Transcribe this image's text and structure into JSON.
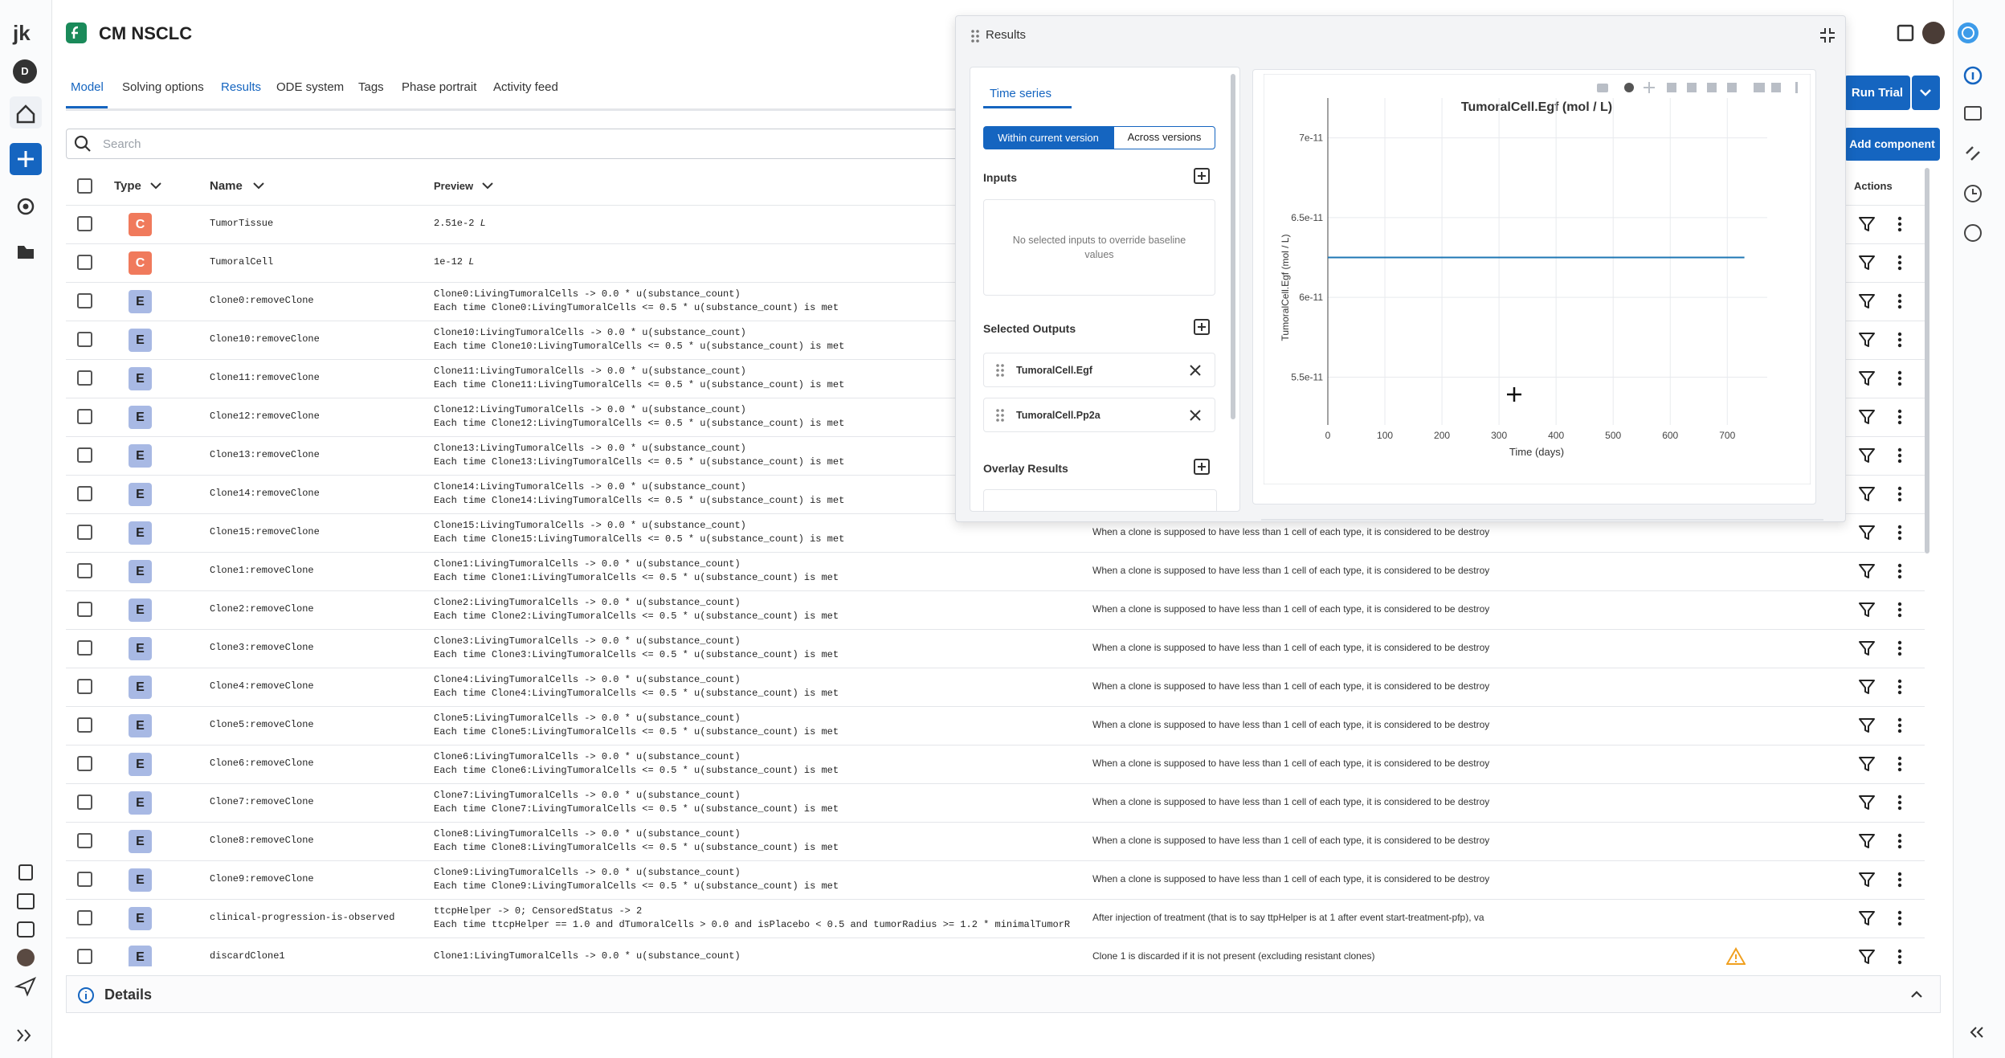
{
  "app": {
    "logo": "jk",
    "avatar_letter": "D"
  },
  "header": {
    "title": "CM NSCLC"
  },
  "tabs": [
    "Model",
    "Solving options",
    "Results",
    "ODE system",
    "Tags",
    "Phase portrait",
    "Activity feed"
  ],
  "search_placeholder": "Search",
  "buttons": {
    "run": "Run Trial",
    "add": "Add component"
  },
  "table": {
    "columns": [
      "Type",
      "Name",
      "Preview",
      "Actions"
    ],
    "rows": [
      {
        "type": "C",
        "name": "TumorTissue",
        "preview": [
          "2.51e-2"
        ],
        "unit": "L"
      },
      {
        "type": "C",
        "name": "TumoralCell",
        "preview": [
          "1e-12"
        ],
        "unit": "L"
      },
      {
        "type": "E",
        "name": "Clone0:removeClone",
        "preview": [
          "Clone0:LivingTumoralCells -> 0.0 * u(substance_count)",
          "Each time Clone0:LivingTumoralCells <= 0.5 * u(substance_count) is met"
        ]
      },
      {
        "type": "E",
        "name": "Clone10:removeClone",
        "preview": [
          "Clone10:LivingTumoralCells -> 0.0 * u(substance_count)",
          "Each time Clone10:LivingTumoralCells <= 0.5 * u(substance_count) is met"
        ]
      },
      {
        "type": "E",
        "name": "Clone11:removeClone",
        "preview": [
          "Clone11:LivingTumoralCells -> 0.0 * u(substance_count)",
          "Each time Clone11:LivingTumoralCells <= 0.5 * u(substance_count) is met"
        ]
      },
      {
        "type": "E",
        "name": "Clone12:removeClone",
        "preview": [
          "Clone12:LivingTumoralCells -> 0.0 * u(substance_count)",
          "Each time Clone12:LivingTumoralCells <= 0.5 * u(substance_count) is met"
        ]
      },
      {
        "type": "E",
        "name": "Clone13:removeClone",
        "preview": [
          "Clone13:LivingTumoralCells -> 0.0 * u(substance_count)",
          "Each time Clone13:LivingTumoralCells <= 0.5 * u(substance_count) is met"
        ]
      },
      {
        "type": "E",
        "name": "Clone14:removeClone",
        "preview": [
          "Clone14:LivingTumoralCells -> 0.0 * u(substance_count)",
          "Each time Clone14:LivingTumoralCells <= 0.5 * u(substance_count) is met"
        ]
      },
      {
        "type": "E",
        "name": "Clone15:removeClone",
        "preview": [
          "Clone15:LivingTumoralCells -> 0.0 * u(substance_count)",
          "Each time Clone15:LivingTumoralCells <= 0.5 * u(substance_count) is met"
        ],
        "description": "When a clone is supposed to have less than 1 cell of each type, it is considered to be destroy"
      },
      {
        "type": "E",
        "name": "Clone1:removeClone",
        "preview": [
          "Clone1:LivingTumoralCells -> 0.0 * u(substance_count)",
          "Each time Clone1:LivingTumoralCells <= 0.5 * u(substance_count) is met"
        ],
        "description": "When a clone is supposed to have less than 1 cell of each type, it is considered to be destroy"
      },
      {
        "type": "E",
        "name": "Clone2:removeClone",
        "preview": [
          "Clone2:LivingTumoralCells -> 0.0 * u(substance_count)",
          "Each time Clone2:LivingTumoralCells <= 0.5 * u(substance_count) is met"
        ],
        "description": "When a clone is supposed to have less than 1 cell of each type, it is considered to be destroy"
      },
      {
        "type": "E",
        "name": "Clone3:removeClone",
        "preview": [
          "Clone3:LivingTumoralCells -> 0.0 * u(substance_count)",
          "Each time Clone3:LivingTumoralCells <= 0.5 * u(substance_count) is met"
        ],
        "description": "When a clone is supposed to have less than 1 cell of each type, it is considered to be destroy"
      },
      {
        "type": "E",
        "name": "Clone4:removeClone",
        "preview": [
          "Clone4:LivingTumoralCells -> 0.0 * u(substance_count)",
          "Each time Clone4:LivingTumoralCells <= 0.5 * u(substance_count) is met"
        ],
        "description": "When a clone is supposed to have less than 1 cell of each type, it is considered to be destroy"
      },
      {
        "type": "E",
        "name": "Clone5:removeClone",
        "preview": [
          "Clone5:LivingTumoralCells -> 0.0 * u(substance_count)",
          "Each time Clone5:LivingTumoralCells <= 0.5 * u(substance_count) is met"
        ],
        "description": "When a clone is supposed to have less than 1 cell of each type, it is considered to be destroy"
      },
      {
        "type": "E",
        "name": "Clone6:removeClone",
        "preview": [
          "Clone6:LivingTumoralCells -> 0.0 * u(substance_count)",
          "Each time Clone6:LivingTumoralCells <= 0.5 * u(substance_count) is met"
        ],
        "description": "When a clone is supposed to have less than 1 cell of each type, it is considered to be destroy"
      },
      {
        "type": "E",
        "name": "Clone7:removeClone",
        "preview": [
          "Clone7:LivingTumoralCells -> 0.0 * u(substance_count)",
          "Each time Clone7:LivingTumoralCells <= 0.5 * u(substance_count) is met"
        ],
        "description": "When a clone is supposed to have less than 1 cell of each type, it is considered to be destroy"
      },
      {
        "type": "E",
        "name": "Clone8:removeClone",
        "preview": [
          "Clone8:LivingTumoralCells -> 0.0 * u(substance_count)",
          "Each time Clone8:LivingTumoralCells <= 0.5 * u(substance_count) is met"
        ],
        "description": "When a clone is supposed to have less than 1 cell of each type, it is considered to be destroy"
      },
      {
        "type": "E",
        "name": "Clone9:removeClone",
        "preview": [
          "Clone9:LivingTumoralCells -> 0.0 * u(substance_count)",
          "Each time Clone9:LivingTumoralCells <= 0.5 * u(substance_count) is met"
        ],
        "description": "When a clone is supposed to have less than 1 cell of each type, it is considered to be destroy"
      },
      {
        "type": "E",
        "name": "clinical-progression-is-observed",
        "preview": [
          "ttcpHelper -> 0; CensoredStatus -> 2",
          "Each time ttcpHelper == 1.0 and dTumoralCells > 0.0 and isPlacebo < 0.5 and tumorRadius >= 1.2 * minimalTumorR"
        ],
        "description": "After injection of treatment (that is to say ttpHelper is at 1 after event start-treatment-pfp), va"
      },
      {
        "type": "E",
        "name": "discardClone1",
        "preview": [
          "Clone1:LivingTumoralCells -> 0.0 * u(substance_count)"
        ],
        "description": "Clone 1 is discarded if it is not present (excluding resistant clones)",
        "warning": true
      }
    ]
  },
  "details": "Details",
  "results_panel": {
    "title": "Results",
    "tab": "Time series",
    "toggle": [
      "Within current version",
      "Across versions"
    ],
    "inputs": "Inputs",
    "inputs_empty": "No selected inputs to override baseline values",
    "selected_outputs": "Selected Outputs",
    "outputs": [
      "TumoralCell.Egf",
      "TumoralCell.Pp2a"
    ],
    "overlay": "Overlay Results",
    "chart": {
      "type": "line",
      "title": "TumoralCell.Egf (mol / L)",
      "xlabel": "Time (days)",
      "ylabel": "TumoralCell.Egf (mol / L)",
      "x": [
        0,
        730
      ],
      "values": [
        6.25e-11,
        6.25e-11
      ],
      "color": "#1f77b4",
      "xlim": [
        0,
        770
      ],
      "ylim": [
        5.2e-11,
        7.25e-11
      ],
      "xticks": [
        0,
        100,
        200,
        300,
        400,
        500,
        600,
        700
      ],
      "yticks": [
        5.5e-11,
        6e-11,
        6.5e-11,
        7e-11
      ],
      "grid": true
    }
  }
}
